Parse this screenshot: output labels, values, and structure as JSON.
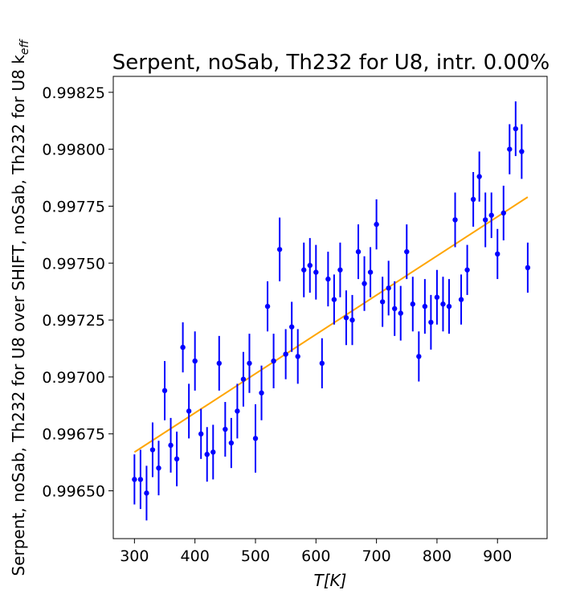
{
  "chart_data": {
    "type": "scatter",
    "title": "Serpent, noSab, Th232 for U8, intr. 0.00%",
    "xlabel_main": "T",
    "xlabel_unit": "[K]",
    "ylabel_main": "Serpent, noSab, Th232 for U8 over SHIFT, noSab, Th232 for U8 k",
    "ylabel_sub": "eff",
    "xlim": [
      265,
      982
    ],
    "ylim": [
      0.99629,
      0.99832
    ],
    "x_ticks": [
      300,
      400,
      500,
      600,
      700,
      800,
      900
    ],
    "y_ticks": [
      0.9965,
      0.99675,
      0.997,
      0.99725,
      0.9975,
      0.99775,
      0.998,
      0.99825
    ],
    "x_tick_labels": [
      "300",
      "400",
      "500",
      "600",
      "700",
      "800",
      "900"
    ],
    "y_tick_labels": [
      "0.99650",
      "0.99675",
      "0.99700",
      "0.99725",
      "0.99750",
      "0.99775",
      "0.99800",
      "0.99825"
    ],
    "grid": false,
    "series": [
      {
        "kind": "errorbar",
        "color": "#0000ff",
        "points": [
          [
            300,
            0.99655,
            0.00011
          ],
          [
            310,
            0.99655,
            0.00013
          ],
          [
            320,
            0.99649,
            0.00012
          ],
          [
            330,
            0.99668,
            0.00012
          ],
          [
            340,
            0.9966,
            0.00012
          ],
          [
            350,
            0.99694,
            0.00013
          ],
          [
            360,
            0.9967,
            0.00012
          ],
          [
            370,
            0.99664,
            0.00012
          ],
          [
            380,
            0.99713,
            0.00011
          ],
          [
            390,
            0.99685,
            0.00012
          ],
          [
            400,
            0.99707,
            0.00013
          ],
          [
            410,
            0.99675,
            0.00011
          ],
          [
            420,
            0.99666,
            0.00012
          ],
          [
            430,
            0.99667,
            0.00012
          ],
          [
            440,
            0.99706,
            0.00012
          ],
          [
            450,
            0.99677,
            0.00012
          ],
          [
            460,
            0.99671,
            0.00011
          ],
          [
            470,
            0.99685,
            0.00012
          ],
          [
            480,
            0.99699,
            0.00012
          ],
          [
            490,
            0.99706,
            0.00013
          ],
          [
            500,
            0.99673,
            0.00015
          ],
          [
            510,
            0.99693,
            0.00012
          ],
          [
            520,
            0.99731,
            0.00011
          ],
          [
            530,
            0.99707,
            0.00012
          ],
          [
            540,
            0.99756,
            0.00014
          ],
          [
            550,
            0.9971,
            0.00011
          ],
          [
            560,
            0.99722,
            0.00011
          ],
          [
            570,
            0.99709,
            0.00012
          ],
          [
            580,
            0.99747,
            0.00012
          ],
          [
            590,
            0.99749,
            0.00012
          ],
          [
            600,
            0.99746,
            0.00012
          ],
          [
            610,
            0.99706,
            0.00011
          ],
          [
            620,
            0.99743,
            0.00012
          ],
          [
            630,
            0.99734,
            0.00011
          ],
          [
            640,
            0.99747,
            0.00012
          ],
          [
            650,
            0.99726,
            0.00012
          ],
          [
            660,
            0.99725,
            0.00011
          ],
          [
            670,
            0.99755,
            0.00012
          ],
          [
            680,
            0.99741,
            0.00012
          ],
          [
            690,
            0.99746,
            0.00011
          ],
          [
            700,
            0.99767,
            0.00011
          ],
          [
            710,
            0.99733,
            0.00011
          ],
          [
            720,
            0.99739,
            0.00012
          ],
          [
            730,
            0.9973,
            0.00012
          ],
          [
            740,
            0.99728,
            0.00012
          ],
          [
            750,
            0.99755,
            0.00012
          ],
          [
            760,
            0.99732,
            0.00012
          ],
          [
            770,
            0.99709,
            0.00011
          ],
          [
            780,
            0.99731,
            0.00012
          ],
          [
            790,
            0.99724,
            0.00012
          ],
          [
            800,
            0.99735,
            0.00012
          ],
          [
            810,
            0.99732,
            0.00012
          ],
          [
            820,
            0.99731,
            0.00012
          ],
          [
            830,
            0.99769,
            0.00012
          ],
          [
            840,
            0.99734,
            0.00011
          ],
          [
            850,
            0.99747,
            0.00011
          ],
          [
            860,
            0.99778,
            0.00012
          ],
          [
            870,
            0.99788,
            0.00011
          ],
          [
            880,
            0.99769,
            0.00012
          ],
          [
            890,
            0.99771,
            0.0001
          ],
          [
            900,
            0.99754,
            0.00011
          ],
          [
            910,
            0.99772,
            0.00012
          ],
          [
            920,
            0.998,
            0.00011
          ],
          [
            930,
            0.99809,
            0.00012
          ],
          [
            940,
            0.99799,
            0.00012
          ],
          [
            950,
            0.99748,
            0.00011
          ]
        ]
      },
      {
        "kind": "line",
        "color": "#ffa500",
        "points": [
          [
            300,
            0.99667
          ],
          [
            950,
            0.99779
          ]
        ]
      }
    ]
  }
}
